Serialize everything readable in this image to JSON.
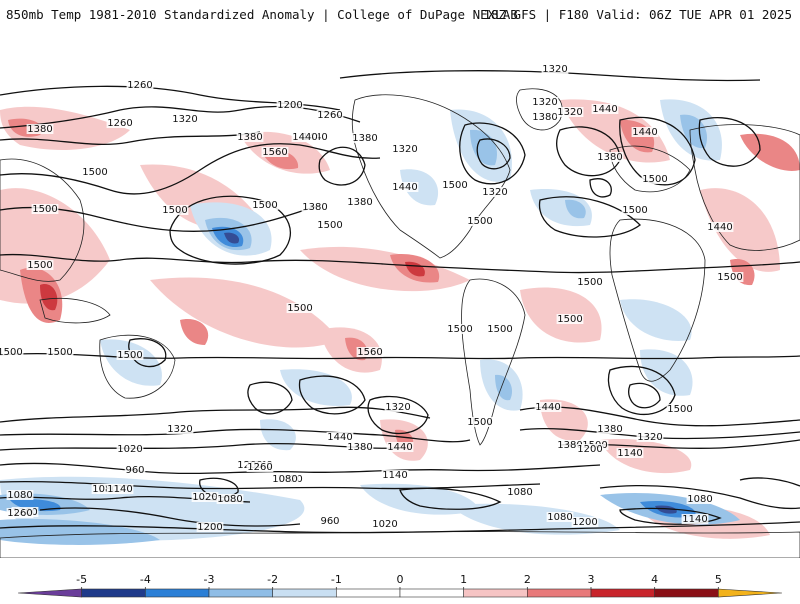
{
  "header": {
    "left_title": "850mb Temp 1981-2010 Standardized Anomaly | College of DuPage NEXLAB",
    "right_title": "18Z GFS | F180 Valid: 06Z TUE APR 01 2025"
  },
  "colorbar": {
    "ticks": [
      "-5",
      "-4",
      "-3",
      "-2",
      "-1",
      "0",
      "1",
      "2",
      "3",
      "4",
      "5"
    ],
    "colors": [
      "#6a3d9a",
      "#1f3a8a",
      "#2b7fd6",
      "#8fbde6",
      "#c9dff2",
      "#ffffff",
      "#ffffff",
      "#f6c4c4",
      "#e8797a",
      "#c8242b",
      "#8a0f16",
      "#f2b21b"
    ]
  },
  "map": {
    "contour_labels": [
      "1320",
      "1260",
      "1200",
      "1320",
      "1260",
      "1380",
      "1260",
      "1320",
      "1380",
      "1440",
      "1380",
      "1560",
      "1440",
      "1500",
      "1500",
      "1500",
      "1500",
      "1380",
      "1500",
      "1320",
      "1380",
      "1440",
      "1320",
      "1380",
      "1320",
      "1440",
      "1380",
      "1440",
      "1500",
      "1500",
      "1500",
      "1440",
      "1500",
      "1500",
      "1500",
      "1500",
      "1500",
      "1500",
      "1500",
      "1500",
      "1500",
      "1560",
      "1500",
      "1500",
      "1440",
      "1500",
      "1380",
      "1320",
      "1500",
      "1440",
      "1380",
      "1320",
      "1440",
      "1500",
      "1380",
      "1320",
      "1260",
      "1200",
      "1140",
      "1200",
      "1020",
      "960",
      "1260",
      "1080",
      "1200",
      "1140",
      "1020",
      "1080",
      "1140",
      "1080",
      "1020",
      "1080",
      "1080",
      "1140",
      "1260",
      "1140",
      "1080",
      "960",
      "1020",
      "1200",
      "1080",
      "1200"
    ]
  }
}
